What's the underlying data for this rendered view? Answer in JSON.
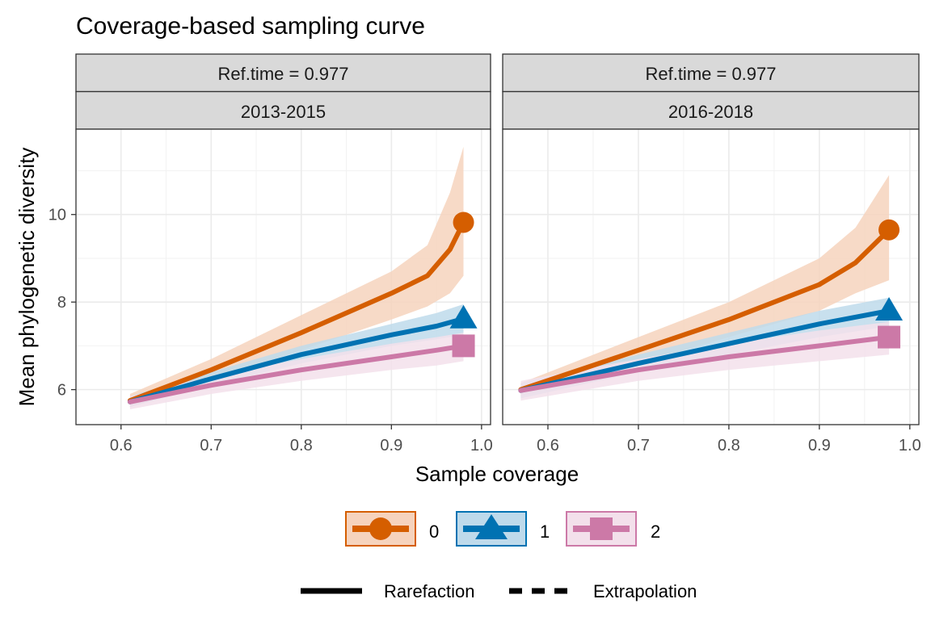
{
  "chart_data": {
    "type": "line",
    "title": "Coverage-based sampling curve",
    "xlabel": "Sample coverage",
    "ylabel": "Mean phylogenetic diversity",
    "xlim": [
      0.55,
      1.01
    ],
    "ylim": [
      5.2,
      11.95
    ],
    "x_ticks": [
      0.6,
      0.7,
      0.8,
      0.9,
      1.0
    ],
    "x_tick_labels": [
      "0.6",
      "0.7",
      "0.8",
      "0.9",
      "1.0"
    ],
    "y_ticks": [
      6,
      8,
      10
    ],
    "y_tick_labels": [
      "6",
      "8",
      "10"
    ],
    "grid": true,
    "legend_position": "bottom",
    "legend": {
      "order_labels": [
        "0",
        "1",
        "2"
      ],
      "method_labels": [
        "Rarefaction",
        "Extrapolation"
      ]
    },
    "panels": [
      {
        "strip_top": "Ref.time = 0.977",
        "strip_bottom": "2013-2015",
        "series": [
          {
            "name": "0",
            "color": "#D55E00",
            "marker": "circle",
            "x": [
              0.61,
              0.7,
              0.8,
              0.9,
              0.94,
              0.965,
              0.98
            ],
            "y": [
              5.75,
              6.45,
              7.3,
              8.2,
              8.6,
              9.2,
              9.82
            ],
            "lower": [
              5.6,
              6.2,
              6.9,
              7.6,
              7.9,
              8.2,
              8.6
            ],
            "upper": [
              5.9,
              6.7,
              7.7,
              8.7,
              9.3,
              10.5,
              11.55
            ],
            "endpoint": [
              0.98,
              9.82
            ]
          },
          {
            "name": "1",
            "color": "#0072B2",
            "marker": "triangle",
            "x": [
              0.61,
              0.7,
              0.8,
              0.9,
              0.95,
              0.98
            ],
            "y": [
              5.72,
              6.25,
              6.8,
              7.25,
              7.45,
              7.62
            ],
            "lower": [
              5.6,
              6.1,
              6.6,
              7.0,
              7.15,
              7.25
            ],
            "upper": [
              5.85,
              6.4,
              7.0,
              7.5,
              7.75,
              7.95
            ],
            "endpoint": [
              0.98,
              7.62
            ]
          },
          {
            "name": "2",
            "color": "#CC79A7",
            "marker": "square",
            "x": [
              0.61,
              0.7,
              0.8,
              0.9,
              0.95,
              0.98
            ],
            "y": [
              5.72,
              6.1,
              6.45,
              6.75,
              6.9,
              7.0
            ],
            "lower": [
              5.55,
              5.9,
              6.2,
              6.45,
              6.55,
              6.65
            ],
            "upper": [
              5.85,
              6.3,
              6.7,
              7.05,
              7.2,
              7.3
            ],
            "endpoint": [
              0.98,
              7.0
            ]
          }
        ]
      },
      {
        "strip_top": "Ref.time = 0.977",
        "strip_bottom": "2016-2018",
        "series": [
          {
            "name": "0",
            "color": "#D55E00",
            "marker": "circle",
            "x": [
              0.57,
              0.7,
              0.8,
              0.9,
              0.94,
              0.977
            ],
            "y": [
              6.0,
              6.9,
              7.6,
              8.4,
              8.9,
              9.65
            ],
            "lower": [
              5.85,
              6.6,
              7.2,
              7.8,
              8.2,
              8.5
            ],
            "upper": [
              6.15,
              7.2,
              8.0,
              9.0,
              9.7,
              10.9
            ],
            "endpoint": [
              0.977,
              9.65
            ]
          },
          {
            "name": "1",
            "color": "#0072B2",
            "marker": "triangle",
            "x": [
              0.57,
              0.7,
              0.8,
              0.9,
              0.977
            ],
            "y": [
              5.98,
              6.6,
              7.05,
              7.5,
              7.8
            ],
            "lower": [
              5.8,
              6.4,
              6.8,
              7.2,
              7.45
            ],
            "upper": [
              6.15,
              6.8,
              7.3,
              7.8,
              8.1
            ],
            "endpoint": [
              0.977,
              7.8
            ]
          },
          {
            "name": "2",
            "color": "#CC79A7",
            "marker": "square",
            "x": [
              0.57,
              0.7,
              0.8,
              0.9,
              0.977
            ],
            "y": [
              5.98,
              6.45,
              6.75,
              7.0,
              7.2
            ],
            "lower": [
              5.75,
              6.2,
              6.45,
              6.65,
              6.8
            ],
            "upper": [
              6.2,
              6.7,
              7.05,
              7.35,
              7.55
            ],
            "endpoint": [
              0.977,
              7.2
            ]
          }
        ]
      }
    ]
  }
}
